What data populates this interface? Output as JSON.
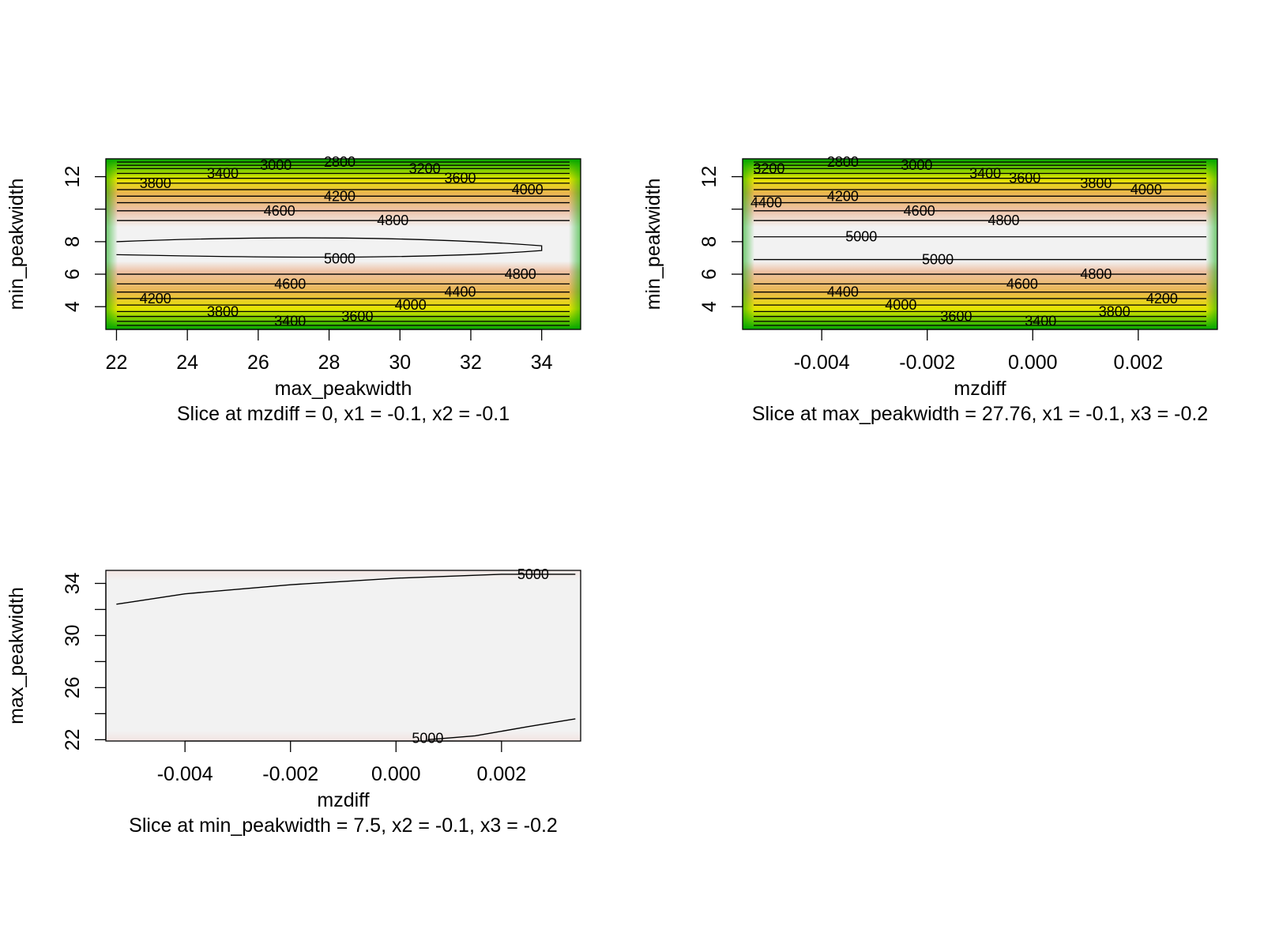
{
  "colors": {
    "low": "#00A600",
    "lowmid": "#E6E600",
    "mid": "#EAB64E",
    "high": "#F2F2F2",
    "contour": "#000000"
  },
  "chart_data": [
    {
      "type": "heatmap",
      "subtype": "contour",
      "xlabel": "max_peakwidth",
      "ylabel": "min_peakwidth",
      "caption": "Slice at mzdiff = 0, x1 = -0.1, x2 = -0.1",
      "xlim": [
        21.7,
        35.1
      ],
      "ylim": [
        2.6,
        13.1
      ],
      "x_ticks": [
        22,
        24,
        26,
        28,
        30,
        32,
        34
      ],
      "x_tick_labels": [
        "22",
        "24",
        "26",
        "28",
        "30",
        "32",
        "34"
      ],
      "y_ticks": [
        4,
        6,
        8,
        12
      ],
      "y_tick_labels": [
        "4",
        "6",
        "8",
        "12"
      ],
      "y_minor_ticks": [
        10
      ],
      "contour_levels": [
        {
          "level": 2800,
          "y": 12.9
        },
        {
          "level": 3000,
          "y": 12.7
        },
        {
          "level": 3200,
          "y": 12.5
        },
        {
          "level": 3400,
          "y": 12.2
        },
        {
          "level": 3600,
          "y": 11.9
        },
        {
          "level": 3800,
          "y": 11.6
        },
        {
          "level": 4000,
          "y": 11.2
        },
        {
          "level": 4200,
          "y": 10.8
        },
        {
          "level": 4400,
          "y": 10.4
        },
        {
          "level": 4600,
          "y": 9.9
        },
        {
          "level": 4800,
          "y": 9.3
        },
        {
          "level": 4800,
          "y": 6.0
        },
        {
          "level": 4600,
          "y": 5.4
        },
        {
          "level": 4400,
          "y": 4.9
        },
        {
          "level": 4200,
          "y": 4.5
        },
        {
          "level": 4000,
          "y": 4.1
        },
        {
          "level": 3800,
          "y": 3.7
        },
        {
          "level": 3600,
          "y": 3.4
        },
        {
          "level": 3400,
          "y": 3.1
        },
        {
          "level": 3200,
          "y": 2.85
        }
      ],
      "peak_contour": {
        "level": 5000,
        "x_range": [
          22,
          34
        ],
        "y_top": 8.0,
        "y_bottom": 7.2
      },
      "labels": [
        {
          "text": "2800",
          "x": 28.3,
          "y": 12.9
        },
        {
          "text": "3000",
          "x": 26.5,
          "y": 12.7
        },
        {
          "text": "3200",
          "x": 30.7,
          "y": 12.5
        },
        {
          "text": "3400",
          "x": 25.0,
          "y": 12.2
        },
        {
          "text": "3600",
          "x": 31.7,
          "y": 11.9
        },
        {
          "text": "3800",
          "x": 23.1,
          "y": 11.6
        },
        {
          "text": "4000",
          "x": 33.6,
          "y": 11.2
        },
        {
          "text": "4200",
          "x": 28.3,
          "y": 10.8
        },
        {
          "text": "4600",
          "x": 26.6,
          "y": 9.9
        },
        {
          "text": "4800",
          "x": 29.8,
          "y": 9.3
        },
        {
          "text": "5000",
          "x": 28.3,
          "y": 6.95
        },
        {
          "text": "4800",
          "x": 33.4,
          "y": 6.0
        },
        {
          "text": "4600",
          "x": 26.9,
          "y": 5.4
        },
        {
          "text": "4400",
          "x": 31.7,
          "y": 4.9
        },
        {
          "text": "4200",
          "x": 23.1,
          "y": 4.5
        },
        {
          "text": "4000",
          "x": 30.3,
          "y": 4.1
        },
        {
          "text": "3800",
          "x": 25.0,
          "y": 3.7
        },
        {
          "text": "3600",
          "x": 28.8,
          "y": 3.4
        },
        {
          "text": "3400",
          "x": 26.9,
          "y": 3.1
        }
      ]
    },
    {
      "type": "heatmap",
      "subtype": "contour",
      "xlabel": "mzdiff",
      "ylabel": "min_peakwidth",
      "caption": "Slice at max_peakwidth = 27.76, x1 = -0.1, x3 = -0.2",
      "xlim": [
        -0.0055,
        0.0035
      ],
      "ylim": [
        2.6,
        13.1
      ],
      "x_ticks": [
        -0.004,
        -0.002,
        0.0,
        0.002
      ],
      "x_tick_labels": [
        "-0.004",
        "-0.002",
        "0.000",
        "0.002"
      ],
      "y_ticks": [
        4,
        6,
        8,
        12
      ],
      "y_tick_labels": [
        "4",
        "6",
        "8",
        "12"
      ],
      "y_minor_ticks": [
        10
      ],
      "contour_levels": [
        {
          "level": 2800,
          "y": 12.9
        },
        {
          "level": 3000,
          "y": 12.7
        },
        {
          "level": 3200,
          "y": 12.5
        },
        {
          "level": 3400,
          "y": 12.2
        },
        {
          "level": 3600,
          "y": 11.9
        },
        {
          "level": 3800,
          "y": 11.6
        },
        {
          "level": 4000,
          "y": 11.2
        },
        {
          "level": 4200,
          "y": 10.8
        },
        {
          "level": 4400,
          "y": 10.4
        },
        {
          "level": 4600,
          "y": 9.9
        },
        {
          "level": 4800,
          "y": 9.3
        },
        {
          "level": 5000,
          "y": 8.3
        },
        {
          "level": 5000,
          "y": 6.9
        },
        {
          "level": 4800,
          "y": 6.0
        },
        {
          "level": 4600,
          "y": 5.4
        },
        {
          "level": 4400,
          "y": 4.9
        },
        {
          "level": 4200,
          "y": 4.5
        },
        {
          "level": 4000,
          "y": 4.1
        },
        {
          "level": 3800,
          "y": 3.7
        },
        {
          "level": 3600,
          "y": 3.4
        },
        {
          "level": 3400,
          "y": 3.1
        },
        {
          "level": 3200,
          "y": 2.85
        }
      ],
      "labels": [
        {
          "text": "3200",
          "x": -0.005,
          "y": 12.5
        },
        {
          "text": "2800",
          "x": -0.0036,
          "y": 12.9
        },
        {
          "text": "3000",
          "x": -0.0022,
          "y": 12.7
        },
        {
          "text": "3400",
          "x": -0.0009,
          "y": 12.2
        },
        {
          "text": "3600",
          "x": -0.00015,
          "y": 11.9
        },
        {
          "text": "3800",
          "x": 0.0012,
          "y": 11.6
        },
        {
          "text": "4000",
          "x": 0.00215,
          "y": 11.2
        },
        {
          "text": "4400",
          "x": -0.00505,
          "y": 10.4
        },
        {
          "text": "4200",
          "x": -0.0036,
          "y": 10.8
        },
        {
          "text": "4600",
          "x": -0.00215,
          "y": 9.9
        },
        {
          "text": "4800",
          "x": -0.00055,
          "y": 9.3
        },
        {
          "text": "5000",
          "x": -0.00325,
          "y": 8.3
        },
        {
          "text": "5000",
          "x": -0.0018,
          "y": 6.9
        },
        {
          "text": "4800",
          "x": 0.0012,
          "y": 6.0
        },
        {
          "text": "4600",
          "x": -0.0002,
          "y": 5.4
        },
        {
          "text": "4400",
          "x": -0.0036,
          "y": 4.9
        },
        {
          "text": "4200",
          "x": 0.00245,
          "y": 4.5
        },
        {
          "text": "4000",
          "x": -0.0025,
          "y": 4.1
        },
        {
          "text": "3800",
          "x": 0.00155,
          "y": 3.7
        },
        {
          "text": "3600",
          "x": -0.00145,
          "y": 3.4
        },
        {
          "text": "3400",
          "x": 0.00015,
          "y": 3.1
        }
      ]
    },
    {
      "type": "heatmap",
      "subtype": "contour",
      "xlabel": "mzdiff",
      "ylabel": "max_peakwidth",
      "caption": "Slice at min_peakwidth = 7.5, x2 = -0.1, x3 = -0.2",
      "xlim": [
        -0.0055,
        0.0035
      ],
      "ylim": [
        21.9,
        35.0
      ],
      "x_ticks": [
        -0.004,
        -0.002,
        0.0,
        0.002
      ],
      "x_tick_labels": [
        "-0.004",
        "-0.002",
        "0.000",
        "0.002"
      ],
      "y_ticks": [
        22,
        26,
        30,
        34
      ],
      "y_tick_labels": [
        "22",
        "26",
        "30",
        "34"
      ],
      "y_minor_ticks": [
        24,
        28,
        32
      ],
      "contour_lines": [
        {
          "level": 5000,
          "points": [
            [
              -0.0053,
              32.4
            ],
            [
              -0.004,
              33.2
            ],
            [
              -0.002,
              33.9
            ],
            [
              0.0,
              34.4
            ],
            [
              0.002,
              34.7
            ],
            [
              0.0034,
              34.7
            ]
          ]
        },
        {
          "level": 5000,
          "points": [
            [
              0.0006,
              22.0
            ],
            [
              0.0015,
              22.3
            ],
            [
              0.0025,
              23.0
            ],
            [
              0.0034,
              23.6
            ]
          ]
        }
      ],
      "labels": [
        {
          "text": "5000",
          "x": 0.0026,
          "y": 34.7
        },
        {
          "text": "5000",
          "x": 0.0006,
          "y": 22.1
        }
      ]
    }
  ]
}
